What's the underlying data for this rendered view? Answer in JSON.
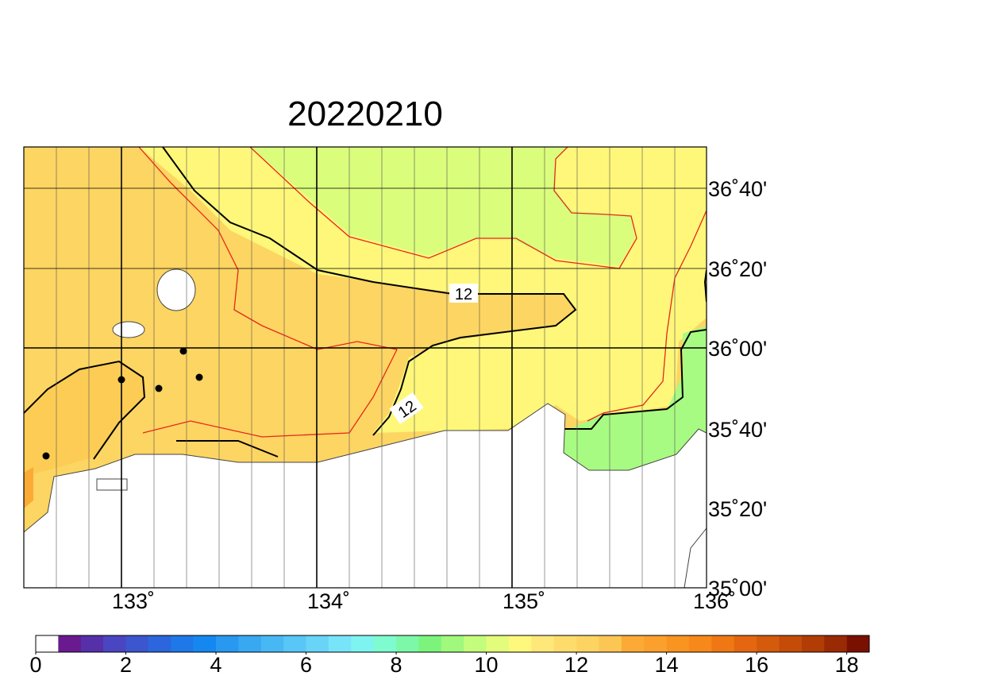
{
  "title": "20220210",
  "lon_labels": [
    "133˚",
    "134˚",
    "135˚",
    "136˚"
  ],
  "lat_labels": [
    "36˚40'",
    "36˚20'",
    "36˚00'",
    "35˚40'",
    "35˚20'",
    "35˚00'"
  ],
  "contour_labels": [
    "12",
    "12"
  ],
  "colorbar": {
    "clim": [
      0,
      18.5
    ],
    "ticks": [
      0,
      2,
      4,
      6,
      8,
      10,
      12,
      14,
      16,
      18
    ],
    "colors": [
      "#ffffff",
      "#6a1a8f",
      "#5530a8",
      "#4a45c0",
      "#3c56cf",
      "#2c66dc",
      "#1f78e8",
      "#1488f0",
      "#2898f0",
      "#38a8f0",
      "#48b8f4",
      "#58c6f6",
      "#68d4f8",
      "#78e4fa",
      "#7ef4f0",
      "#7efcd0",
      "#7cf8a8",
      "#7cf47c",
      "#a0f87c",
      "#c4fc7c",
      "#e4fc7c",
      "#fef87c",
      "#fee87a",
      "#fedc6c",
      "#fdd462",
      "#fcc654",
      "#fbaa36",
      "#fba02c",
      "#f99420",
      "#f7881a",
      "#f07814",
      "#e46610",
      "#d45a0c",
      "#c44c08",
      "#b23c06",
      "#9a2a04",
      "#7a1000"
    ]
  }
}
